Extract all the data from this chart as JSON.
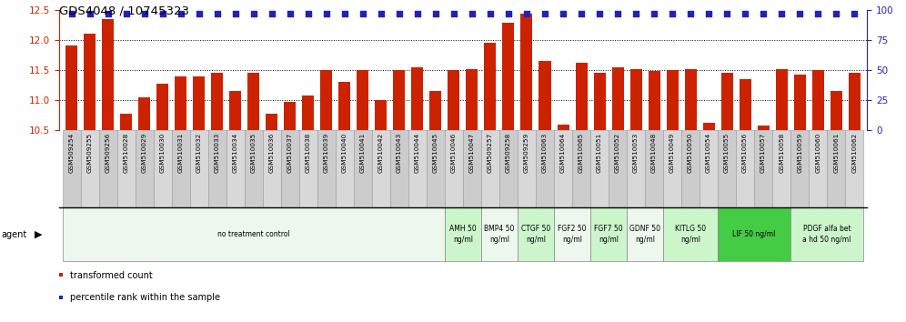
{
  "title": "GDS4048 / 10745323",
  "samples": [
    "GSM509254",
    "GSM509255",
    "GSM509256",
    "GSM510028",
    "GSM510029",
    "GSM510030",
    "GSM510031",
    "GSM510032",
    "GSM510033",
    "GSM510034",
    "GSM510035",
    "GSM510036",
    "GSM510037",
    "GSM510038",
    "GSM510039",
    "GSM510040",
    "GSM510041",
    "GSM510042",
    "GSM510043",
    "GSM510044",
    "GSM510045",
    "GSM510046",
    "GSM510047",
    "GSM509257",
    "GSM509258",
    "GSM509259",
    "GSM510063",
    "GSM510064",
    "GSM510065",
    "GSM510051",
    "GSM510052",
    "GSM510053",
    "GSM510048",
    "GSM510049",
    "GSM510050",
    "GSM510054",
    "GSM510055",
    "GSM510056",
    "GSM510057",
    "GSM510058",
    "GSM510059",
    "GSM510060",
    "GSM510061",
    "GSM510062"
  ],
  "bar_values": [
    11.9,
    12.1,
    12.35,
    10.78,
    11.05,
    11.28,
    11.4,
    11.4,
    11.45,
    11.15,
    11.45,
    10.78,
    10.98,
    11.08,
    11.5,
    11.3,
    11.5,
    11.0,
    11.5,
    11.55,
    11.15,
    11.5,
    11.52,
    11.95,
    12.28,
    12.44,
    11.65,
    10.6,
    11.62,
    11.45,
    11.55,
    11.52,
    11.48,
    11.5,
    11.52,
    10.62,
    11.45,
    11.35,
    10.58,
    11.52,
    11.42,
    11.5,
    11.15,
    11.45
  ],
  "percentile_values": [
    97,
    97,
    97,
    97,
    97,
    97,
    97,
    97,
    97,
    97,
    97,
    97,
    97,
    97,
    97,
    97,
    97,
    97,
    97,
    97,
    97,
    97,
    97,
    97,
    97,
    97,
    97,
    97,
    97,
    97,
    97,
    97,
    97,
    97,
    97,
    97,
    97,
    97,
    97,
    97,
    97,
    97,
    97,
    97
  ],
  "ylim_left": [
    10.5,
    12.5
  ],
  "ylim_right": [
    0,
    100
  ],
  "yticks_left": [
    10.5,
    11.0,
    11.5,
    12.0,
    12.5
  ],
  "yticks_right": [
    0,
    25,
    50,
    75,
    100
  ],
  "bar_color": "#cc2200",
  "dot_color": "#2222bb",
  "agent_groups": [
    {
      "label": "no treatment control",
      "start": 0,
      "end": 21,
      "color": "#edf7ed"
    },
    {
      "label": "AMH 50\nng/ml",
      "start": 21,
      "end": 23,
      "color": "#ccf5cc"
    },
    {
      "label": "BMP4 50\nng/ml",
      "start": 23,
      "end": 25,
      "color": "#edf7ed"
    },
    {
      "label": "CTGF 50\nng/ml",
      "start": 25,
      "end": 27,
      "color": "#ccf5cc"
    },
    {
      "label": "FGF2 50\nng/ml",
      "start": 27,
      "end": 29,
      "color": "#edf7ed"
    },
    {
      "label": "FGF7 50\nng/ml",
      "start": 29,
      "end": 31,
      "color": "#ccf5cc"
    },
    {
      "label": "GDNF 50\nng/ml",
      "start": 31,
      "end": 33,
      "color": "#edf7ed"
    },
    {
      "label": "KITLG 50\nng/ml",
      "start": 33,
      "end": 36,
      "color": "#ccf5cc"
    },
    {
      "label": "LIF 50 ng/ml",
      "start": 36,
      "end": 40,
      "color": "#44cc44"
    },
    {
      "label": "PDGF alfa bet\na hd 50 ng/ml",
      "start": 40,
      "end": 44,
      "color": "#ccf5cc"
    }
  ],
  "tick_colors": [
    "#cccccc",
    "#d8d8d8"
  ]
}
